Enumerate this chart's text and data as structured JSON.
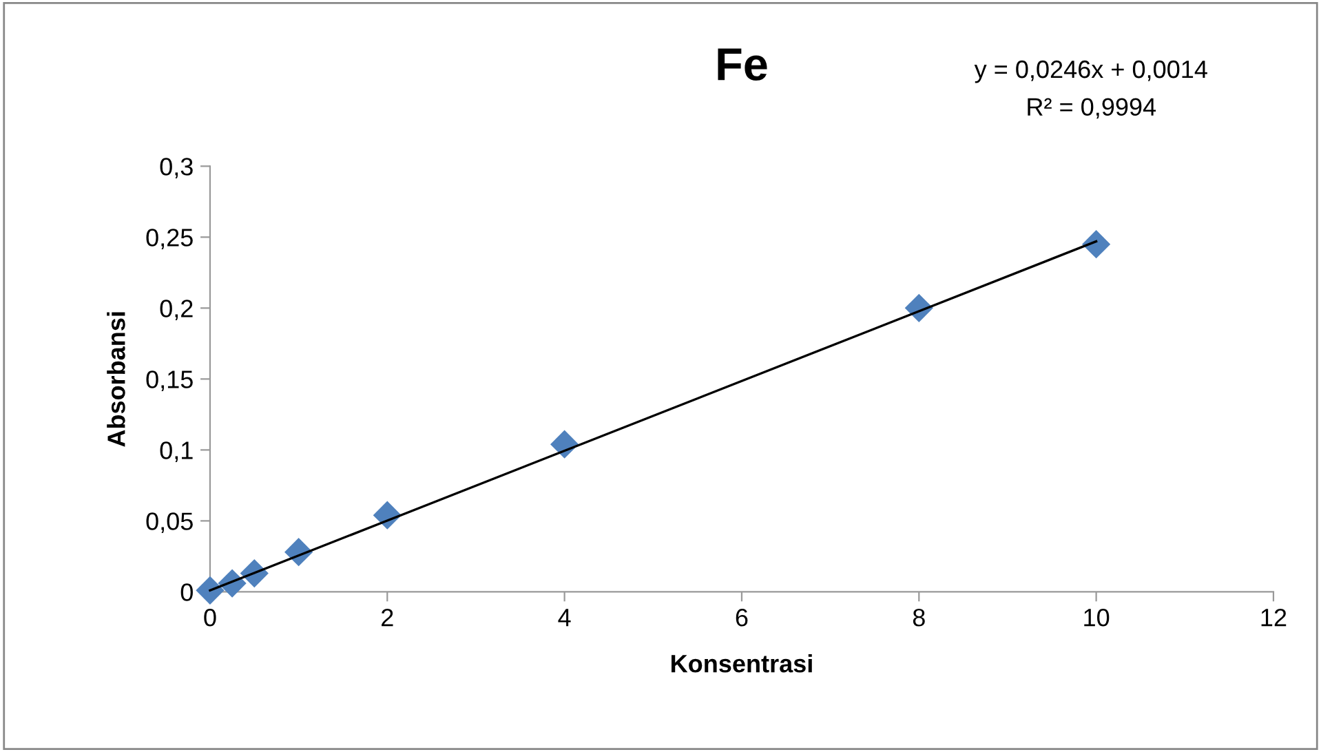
{
  "chart_data": {
    "type": "scatter",
    "title": "Fe",
    "xlabel": "Konsentrasi",
    "ylabel": "Absorbansi",
    "annotations": [
      "y = 0,0246x + 0,0014",
      "R² = 0,9994"
    ],
    "series": [
      {
        "color": "#4f81bd",
        "marker": "diamond",
        "x": [
          0,
          0.25,
          0.5,
          1,
          2,
          4,
          8,
          10
        ],
        "values": [
          0.001,
          0.006,
          0.013,
          0.028,
          0.054,
          0.104,
          0.2,
          0.245
        ]
      },
      {
        "type": "line",
        "color": "#000000",
        "marker": "none",
        "line_style": "solid",
        "x": [
          0,
          10
        ],
        "values": [
          0.001,
          0.247
        ]
      }
    ],
    "xlim": [
      0,
      12
    ],
    "xticks": [
      0,
      2,
      4,
      6,
      8,
      10,
      12
    ],
    "ylim": [
      0,
      0.3
    ],
    "yticks": [
      0,
      {
        "value": 0.05,
        "label": "0,05"
      },
      {
        "value": 0.1,
        "label": "0,1"
      },
      {
        "value": 0.15,
        "label": "0,15"
      },
      {
        "value": 0.2,
        "label": "0,2"
      },
      {
        "value": 0.25,
        "label": "0,25"
      },
      {
        "value": 0.3,
        "label": "0,3"
      }
    ],
    "grid": false,
    "legend": false
  }
}
